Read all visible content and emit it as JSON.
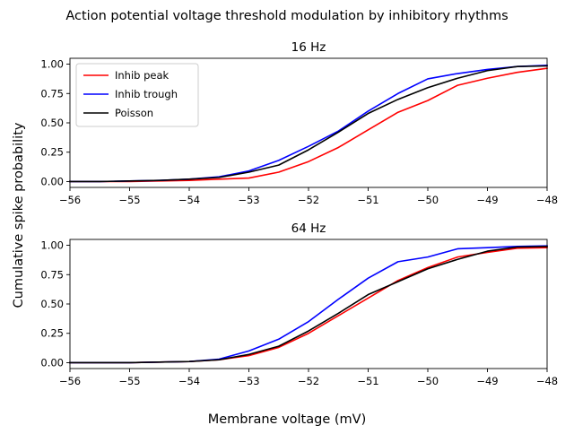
{
  "figure": {
    "suptitle": "Action potential voltage threshold modulation by inhibitory rhythms",
    "xlabel": "Membrane voltage (mV)",
    "ylabel": "Cumulative spike probability"
  },
  "chart_data": [
    {
      "type": "line",
      "title": "16 Hz",
      "xlim": [
        -56,
        -48
      ],
      "ylim": [
        -0.05,
        1.05
      ],
      "xticks": [
        -56,
        -55,
        -54,
        -53,
        -52,
        -51,
        -50,
        -49,
        -48
      ],
      "yticks": [
        0.0,
        0.25,
        0.5,
        0.75,
        1.0
      ],
      "xtick_labels": [
        "−56",
        "−55",
        "−54",
        "−53",
        "−52",
        "−51",
        "−50",
        "−49",
        "−48"
      ],
      "ytick_labels": [
        "0.00",
        "0.25",
        "0.50",
        "0.75",
        "1.00"
      ],
      "grid": false,
      "legend": "upper-left",
      "x": [
        -56,
        -55.5,
        -55,
        -54.5,
        -54,
        -53.5,
        -53,
        -52.5,
        -52,
        -51.5,
        -51,
        -50.5,
        -50,
        -49.5,
        -49,
        -48.5,
        -48
      ],
      "series": [
        {
          "name": "Inhib peak",
          "color": "#ff0000",
          "values": [
            0.0,
            0.0,
            0.0,
            0.005,
            0.01,
            0.02,
            0.03,
            0.08,
            0.17,
            0.29,
            0.44,
            0.59,
            0.69,
            0.82,
            0.88,
            0.93,
            0.965
          ]
        },
        {
          "name": "Inhib trough",
          "color": "#0000ff",
          "values": [
            0.0,
            0.0,
            0.005,
            0.01,
            0.02,
            0.04,
            0.09,
            0.18,
            0.3,
            0.43,
            0.6,
            0.75,
            0.875,
            0.92,
            0.955,
            0.98,
            0.99
          ]
        },
        {
          "name": "Poisson",
          "color": "#000000",
          "values": [
            0.0,
            0.0,
            0.005,
            0.01,
            0.02,
            0.035,
            0.08,
            0.14,
            0.27,
            0.42,
            0.58,
            0.7,
            0.8,
            0.88,
            0.945,
            0.98,
            0.985
          ]
        }
      ]
    },
    {
      "type": "line",
      "title": "64 Hz",
      "xlim": [
        -56,
        -48
      ],
      "ylim": [
        -0.05,
        1.05
      ],
      "xticks": [
        -56,
        -55,
        -54,
        -53,
        -52,
        -51,
        -50,
        -49,
        -48
      ],
      "yticks": [
        0.0,
        0.25,
        0.5,
        0.75,
        1.0
      ],
      "xtick_labels": [
        "−56",
        "−55",
        "−54",
        "−53",
        "−52",
        "−51",
        "−50",
        "−49",
        "−48"
      ],
      "ytick_labels": [
        "0.00",
        "0.25",
        "0.50",
        "0.75",
        "1.00"
      ],
      "grid": false,
      "legend": "none",
      "x": [
        -56,
        -55.5,
        -55,
        -54.5,
        -54,
        -53.5,
        -53,
        -52.5,
        -52,
        -51.5,
        -51,
        -50.5,
        -50,
        -49.5,
        -49,
        -48.5,
        -48
      ],
      "series": [
        {
          "name": "Inhib peak",
          "color": "#ff0000",
          "values": [
            0.0,
            0.0,
            0.0,
            0.005,
            0.01,
            0.025,
            0.06,
            0.13,
            0.25,
            0.4,
            0.55,
            0.7,
            0.81,
            0.9,
            0.94,
            0.975,
            0.98
          ]
        },
        {
          "name": "Inhib trough",
          "color": "#0000ff",
          "values": [
            0.0,
            0.0,
            0.0,
            0.005,
            0.01,
            0.03,
            0.1,
            0.2,
            0.35,
            0.54,
            0.72,
            0.86,
            0.9,
            0.97,
            0.98,
            0.99,
            0.995
          ]
        },
        {
          "name": "Poisson",
          "color": "#000000",
          "values": [
            0.0,
            0.0,
            0.0,
            0.005,
            0.01,
            0.025,
            0.07,
            0.14,
            0.27,
            0.42,
            0.58,
            0.69,
            0.8,
            0.88,
            0.95,
            0.985,
            0.99
          ]
        }
      ]
    }
  ]
}
